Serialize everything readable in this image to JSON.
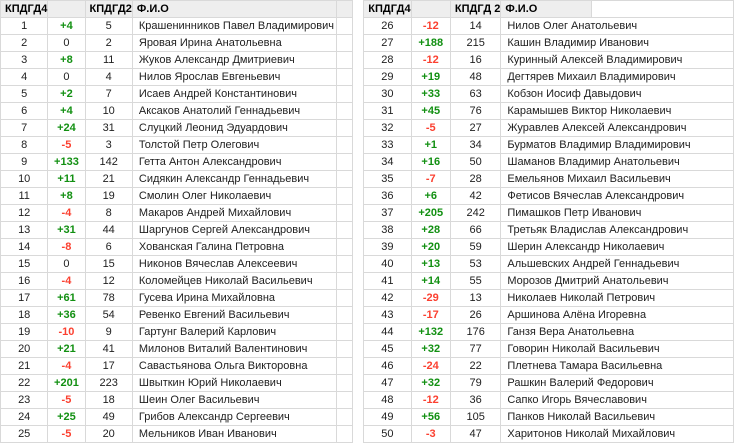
{
  "styles": {
    "header_bg": "#eeeeee",
    "border_color": "#d9d9d9",
    "positive_color": "#129012",
    "negative_color": "#fb4030",
    "text_color": "#212121"
  },
  "tables": [
    {
      "name": "ranking-table-left",
      "headers": [
        "КПДГД4",
        "",
        "КПДГД2",
        "Ф.И.О"
      ],
      "rows": [
        [
          "1",
          "+4",
          "5",
          "Крашенинников Павел Владимирович"
        ],
        [
          "2",
          "0",
          "2",
          "Яровая Ирина Анатольевна"
        ],
        [
          "3",
          "+8",
          "11",
          "Жуков Александр Дмитриевич"
        ],
        [
          "4",
          "0",
          "4",
          "Нилов Ярослав Евгеньевич"
        ],
        [
          "5",
          "+2",
          "7",
          "Исаев Андрей Константинович"
        ],
        [
          "6",
          "+4",
          "10",
          "Аксаков Анатолий Геннадьевич"
        ],
        [
          "7",
          "+24",
          "31",
          "Слуцкий Леонид Эдуардович"
        ],
        [
          "8",
          "-5",
          "3",
          "Толстой Петр Олегович"
        ],
        [
          "9",
          "+133",
          "142",
          "Гетта Антон Александрович"
        ],
        [
          "10",
          "+11",
          "21",
          "Сидякин Александр Геннадьевич"
        ],
        [
          "11",
          "+8",
          "19",
          "Смолин Олег Николаевич"
        ],
        [
          "12",
          "-4",
          "8",
          "Макаров Андрей Михайлович"
        ],
        [
          "13",
          "+31",
          "44",
          "Шаргунов Сергей Александрович"
        ],
        [
          "14",
          "-8",
          "6",
          "Хованская Галина Петровна"
        ],
        [
          "15",
          "0",
          "15",
          "Никонов Вячеслав Алексеевич"
        ],
        [
          "16",
          "-4",
          "12",
          "Коломейцев Николай Васильевич"
        ],
        [
          "17",
          "+61",
          "78",
          "Гусева Ирина Михайловна"
        ],
        [
          "18",
          "+36",
          "54",
          "Ревенко Евгений Васильевич"
        ],
        [
          "19",
          "-10",
          "9",
          "Гартунг Валерий Карлович"
        ],
        [
          "20",
          "+21",
          "41",
          "Милонов Виталий Валентинович"
        ],
        [
          "21",
          "-4",
          "17",
          "Савастьянова Ольга Викторовна"
        ],
        [
          "22",
          "+201",
          "223",
          "Швыткин Юрий Николаевич"
        ],
        [
          "23",
          "-5",
          "18",
          "Шеин Олег Васильевич"
        ],
        [
          "24",
          "+25",
          "49",
          "Грибов Александр Сергеевич"
        ],
        [
          "25",
          "-5",
          "20",
          "Мельников Иван Иванович"
        ]
      ]
    },
    {
      "name": "ranking-table-right",
      "headers": [
        "КПДГД4",
        "",
        "КПДГД 2",
        "Ф.И.О"
      ],
      "rows": [
        [
          "26",
          "-12",
          "14",
          "Нилов Олег Анатольевич"
        ],
        [
          "27",
          "+188",
          "215",
          "Кашин Владимир Иванович"
        ],
        [
          "28",
          "-12",
          "16",
          "Куринный Алексей Владимирович"
        ],
        [
          "29",
          "+19",
          "48",
          "Дегтярев Михаил Владимирович"
        ],
        [
          "30",
          "+33",
          "63",
          "Кобзон Иосиф Давыдович"
        ],
        [
          "31",
          "+45",
          "76",
          "Карамышев Виктор Николаевич"
        ],
        [
          "32",
          "-5",
          "27",
          "Журавлев Алексей Александрович"
        ],
        [
          "33",
          "+1",
          "34",
          "Бурматов Владимир Владимирович"
        ],
        [
          "34",
          "+16",
          "50",
          "Шаманов Владимир Анатольевич"
        ],
        [
          "35",
          "-7",
          "28",
          "Емельянов Михаил Васильевич"
        ],
        [
          "36",
          "+6",
          "42",
          "Фетисов Вячеслав Александрович"
        ],
        [
          "37",
          "+205",
          "242",
          "Пимашков Петр Иванович"
        ],
        [
          "38",
          "+28",
          "66",
          "Третьяк Владислав Александрович"
        ],
        [
          "39",
          "+20",
          "59",
          "Шерин Александр Николаевич"
        ],
        [
          "40",
          "+13",
          "53",
          "Альшевских Андрей Геннадьевич"
        ],
        [
          "41",
          "+14",
          "55",
          "Морозов Дмитрий Анатольевич"
        ],
        [
          "42",
          "-29",
          "13",
          "Николаев Николай Петрович"
        ],
        [
          "43",
          "-17",
          "26",
          "Аршинова Алёна Игоревна"
        ],
        [
          "44",
          "+132",
          "176",
          "Ганзя Вера Анатольевна"
        ],
        [
          "45",
          "+32",
          "77",
          "Говорин Николай Васильевич"
        ],
        [
          "46",
          "-24",
          "22",
          "Плетнева Тамара Васильевна"
        ],
        [
          "47",
          "+32",
          "79",
          "Рашкин Валерий Федорович"
        ],
        [
          "48",
          "-12",
          "36",
          "Сапко Игорь Вячеславович"
        ],
        [
          "49",
          "+56",
          "105",
          "Панков Николай Васильевич"
        ],
        [
          "50",
          "-3",
          "47",
          "Харитонов Николай Михайлович"
        ]
      ]
    }
  ]
}
